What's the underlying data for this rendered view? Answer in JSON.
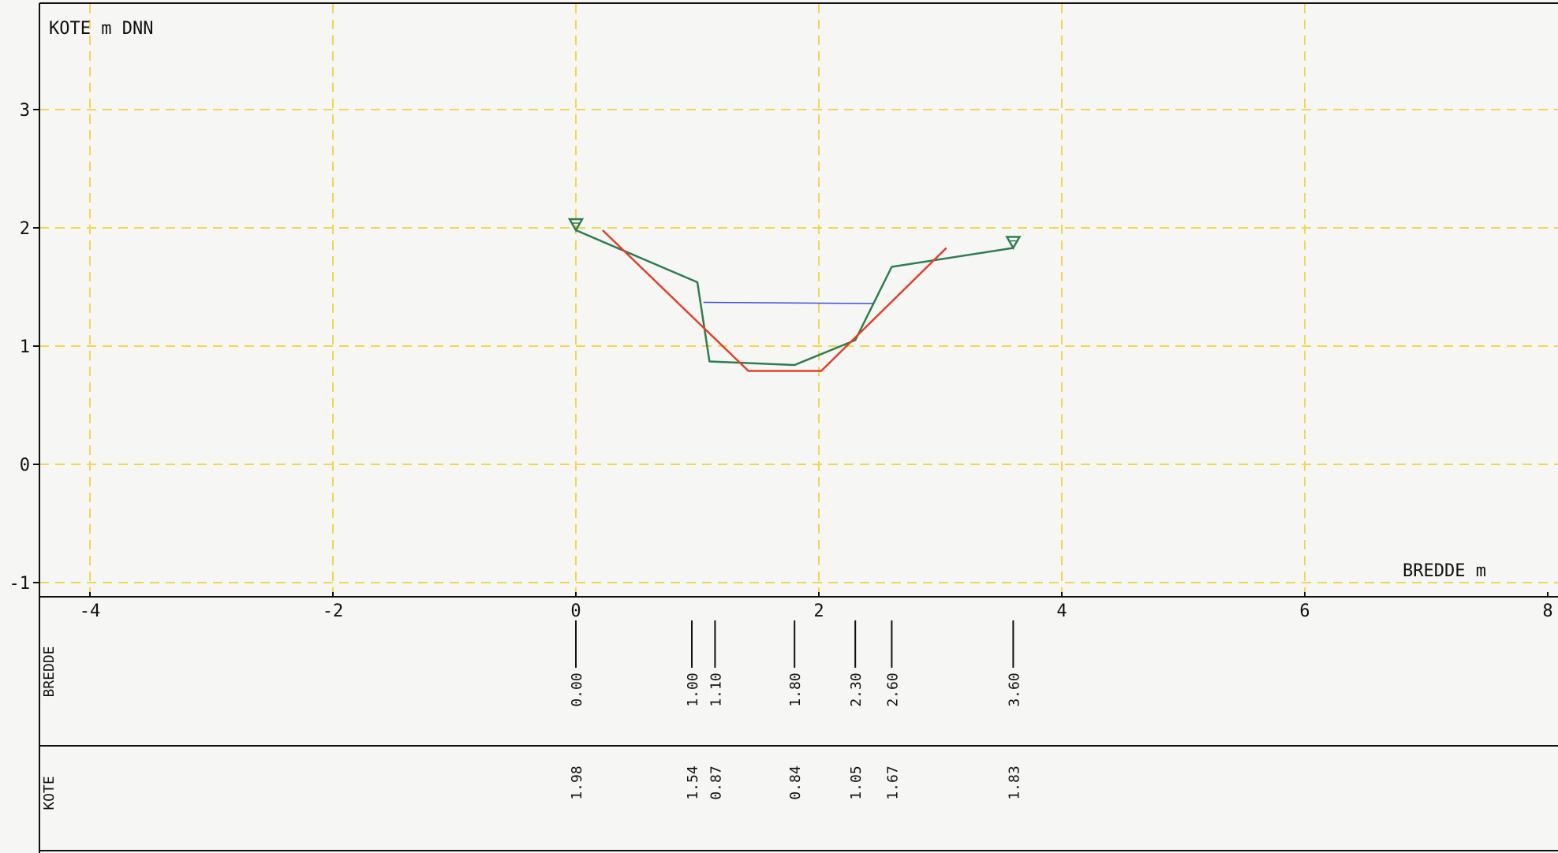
{
  "chart_data": {
    "type": "line",
    "ylabel": "KOTE m DNN",
    "xlabel": "BREDDE m",
    "xlim": [
      -4.4,
      8
    ],
    "ylim": [
      -1.1,
      3.9
    ],
    "x_ticks": [
      "-4",
      "-2",
      "0",
      "2",
      "4",
      "6",
      "8"
    ],
    "y_ticks": [
      "3",
      "2",
      "1",
      "0",
      "-1"
    ],
    "grid": true,
    "series": [
      {
        "color": "#2e7d4f",
        "points": [
          [
            0.0,
            1.98
          ],
          [
            1.0,
            1.54
          ],
          [
            1.1,
            0.87
          ],
          [
            1.8,
            0.84
          ],
          [
            2.3,
            1.05
          ],
          [
            2.6,
            1.67
          ],
          [
            3.6,
            1.83
          ]
        ]
      },
      {
        "color": "#e0402a",
        "points": [
          [
            0.22,
            1.98
          ],
          [
            1.42,
            0.79
          ],
          [
            2.02,
            0.79
          ],
          [
            3.05,
            1.83
          ]
        ]
      },
      {
        "color": "#3b4fd0",
        "points": [
          [
            1.05,
            1.37
          ],
          [
            2.45,
            1.36
          ]
        ]
      }
    ],
    "markers": [
      {
        "x": 0.0,
        "y": 1.98,
        "color": "#2e7d4f"
      },
      {
        "x": 3.6,
        "y": 1.83,
        "color": "#2e7d4f"
      }
    ],
    "table": {
      "row_labels": [
        "BREDDE",
        "KOTE"
      ],
      "bredde": [
        "0.00",
        "1.00",
        "1.10",
        "1.80",
        "2.30",
        "2.60",
        "3.60"
      ],
      "kote": [
        "1.98",
        "1.54",
        "0.87",
        "0.84",
        "1.05",
        "1.67",
        "1.83"
      ]
    }
  }
}
